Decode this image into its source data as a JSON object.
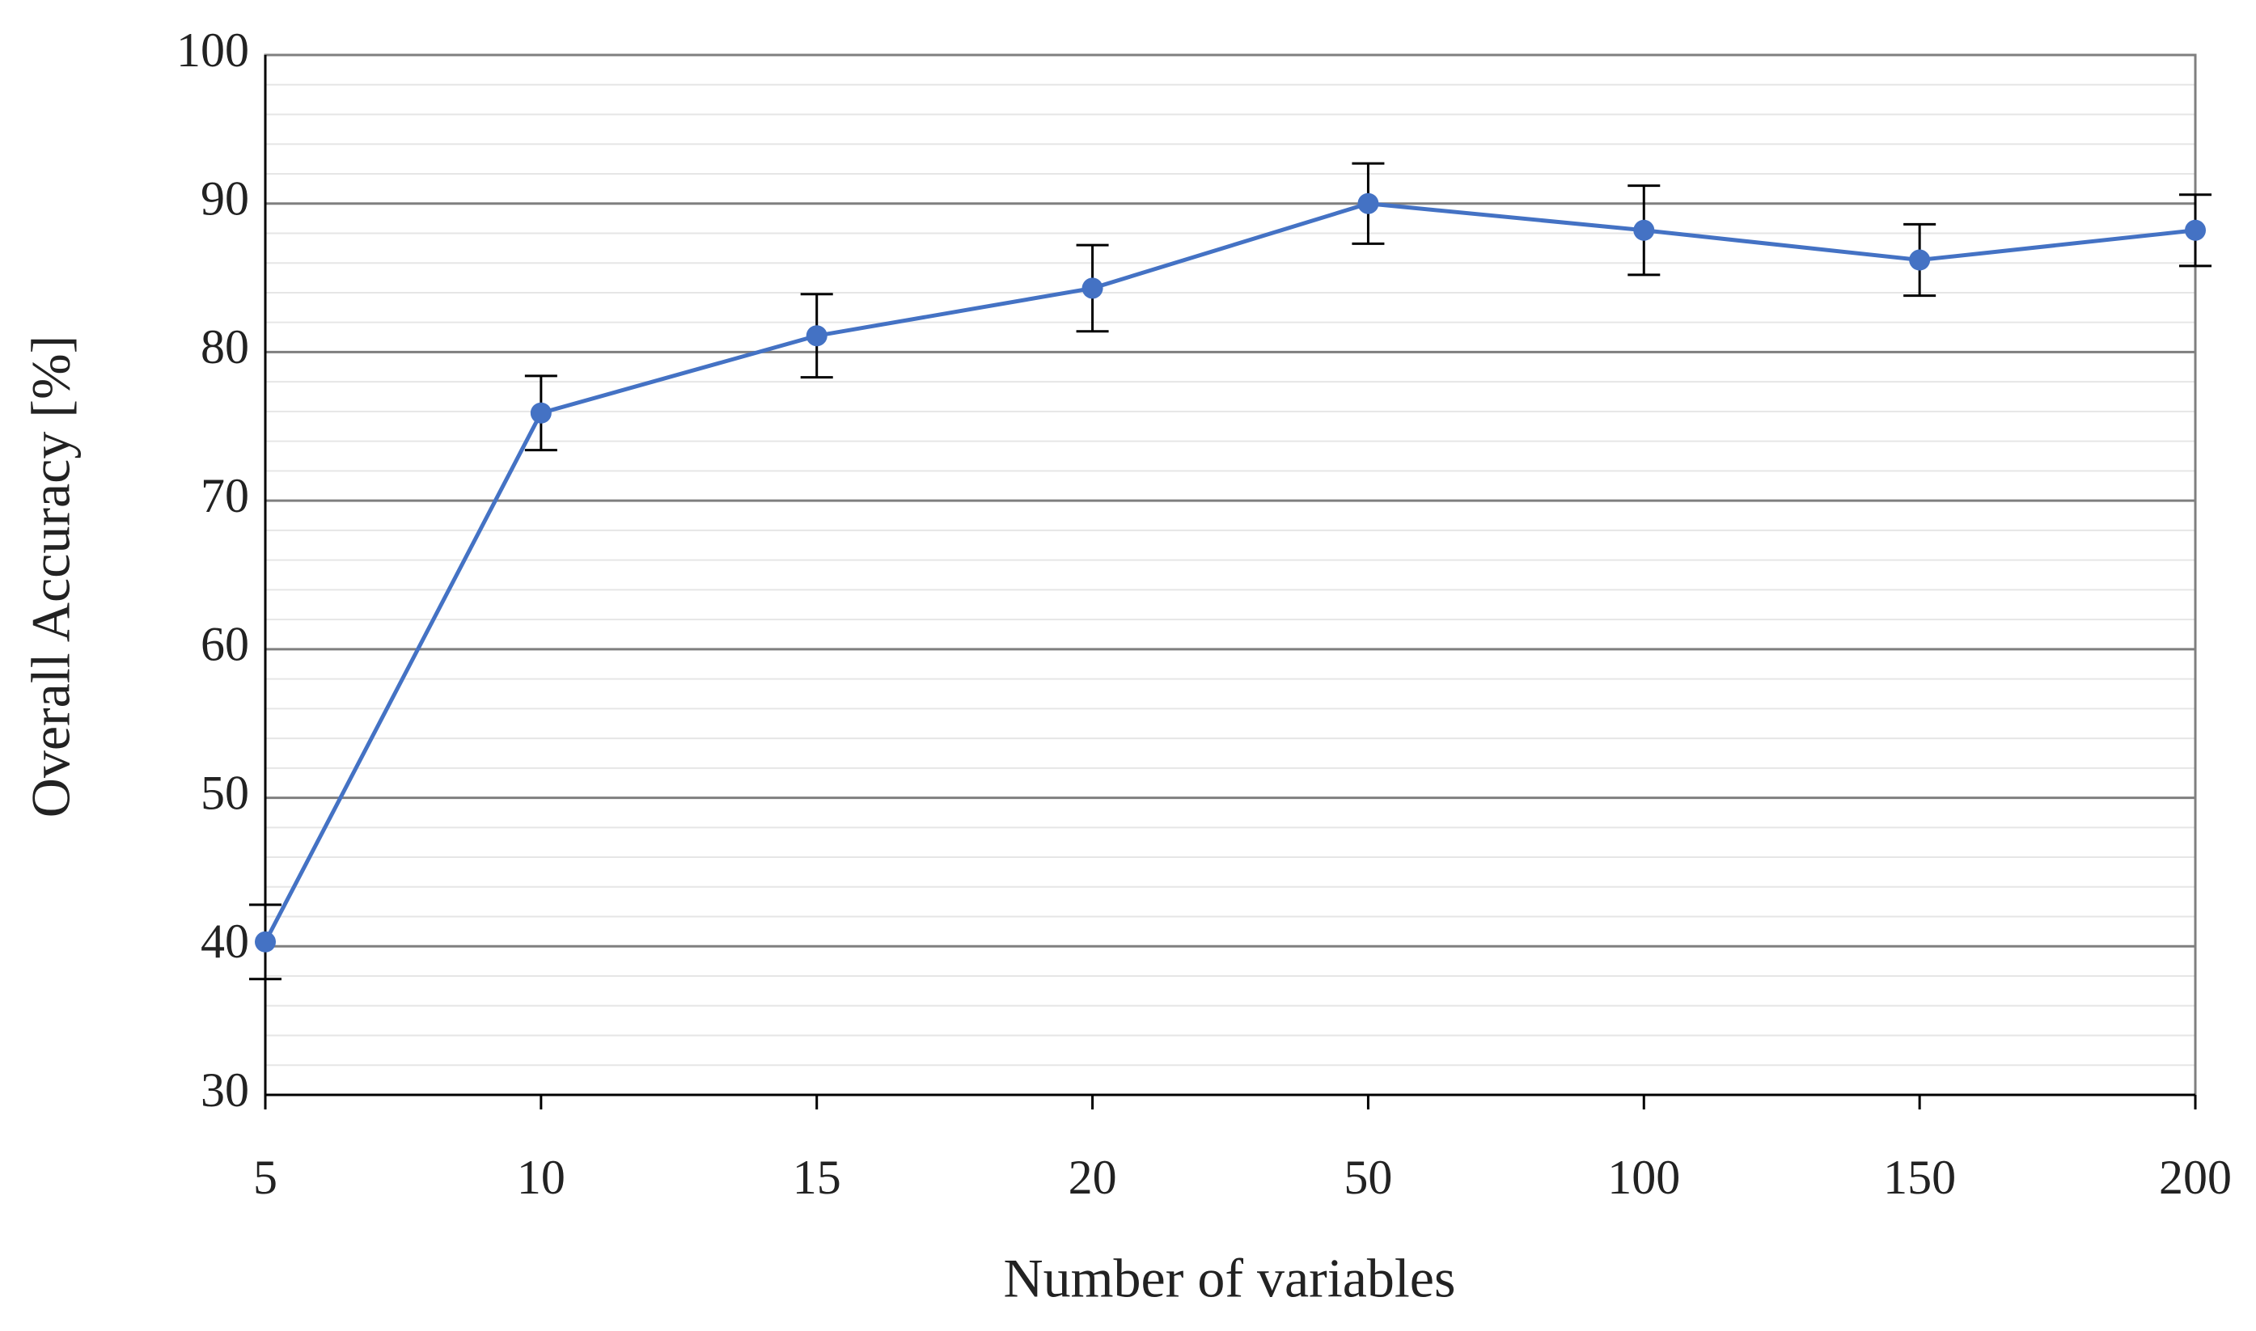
{
  "chart_data": {
    "type": "line",
    "x_label": "Number of variables",
    "y_label": "Overall Accuracy [%]",
    "categories": [
      "5",
      "10",
      "15",
      "20",
      "50",
      "100",
      "150",
      "200"
    ],
    "values": [
      40.3,
      75.9,
      81.1,
      84.3,
      90.0,
      88.2,
      86.2,
      88.2
    ],
    "errors": [
      2.5,
      2.5,
      2.8,
      2.9,
      2.7,
      3.0,
      2.4,
      2.4
    ],
    "color": "#4472c4",
    "error_color": "#000000",
    "ylim": [
      30,
      100
    ],
    "yticks": [
      30,
      40,
      50,
      60,
      70,
      80,
      90,
      100
    ],
    "grid": true,
    "minor_grid_step": 2
  }
}
